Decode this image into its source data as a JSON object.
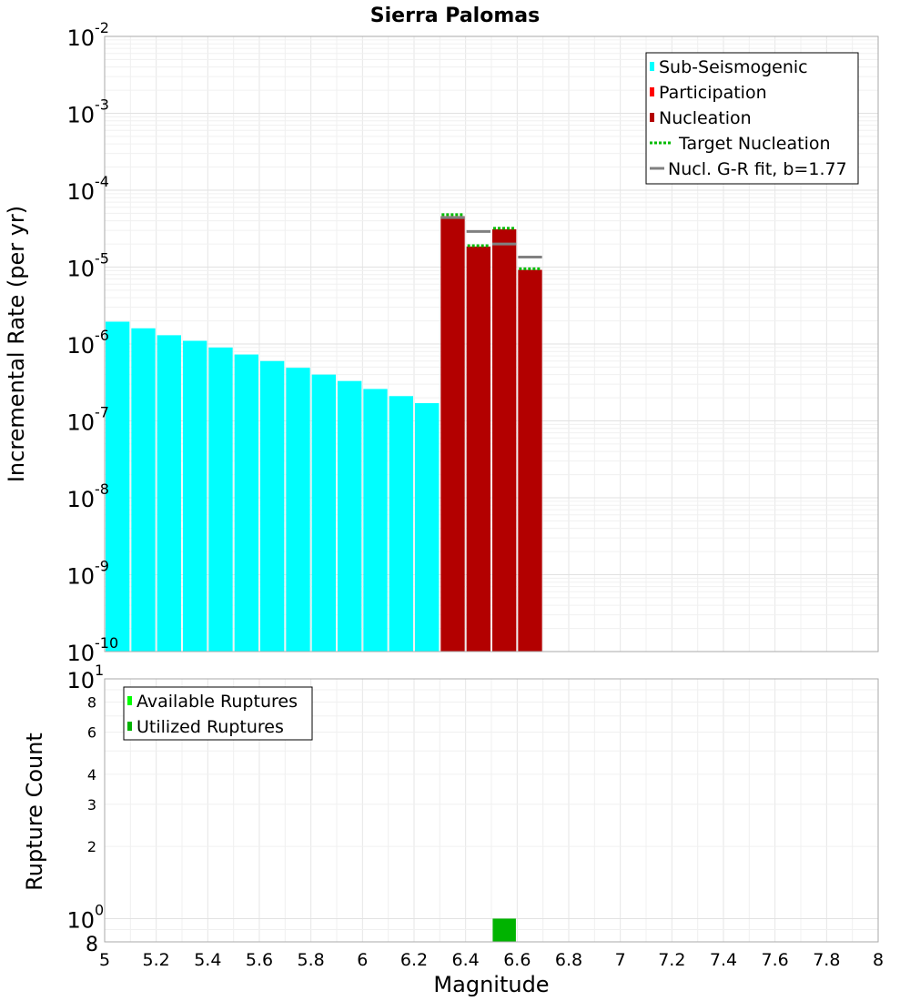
{
  "chart_data": [
    {
      "type": "bar",
      "title": "Sierra Palomas",
      "ylabel": "Incremental Rate (per yr)",
      "y_scale": "log",
      "ylim": [
        1e-10,
        0.01
      ],
      "xlim": [
        5,
        8
      ],
      "bar_width": 0.1,
      "y_ticks": [
        {
          "base": "10",
          "exp": "-10"
        },
        {
          "base": "10",
          "exp": "-9"
        },
        {
          "base": "10",
          "exp": "-8"
        },
        {
          "base": "10",
          "exp": "-7"
        },
        {
          "base": "10",
          "exp": "-6"
        },
        {
          "base": "10",
          "exp": "-5"
        },
        {
          "base": "10",
          "exp": "-4"
        },
        {
          "base": "10",
          "exp": "-3"
        },
        {
          "base": "10",
          "exp": "-2"
        }
      ],
      "legend": {
        "placement": "top-right",
        "entries": [
          {
            "label": "Sub-Seismogenic",
            "color": "#00ffff",
            "style": "box"
          },
          {
            "label": "Participation",
            "color": "#ff0000",
            "style": "box"
          },
          {
            "label": "Nucleation",
            "color": "#b30000",
            "style": "box"
          },
          {
            "label": "Target Nucleation",
            "color": "#00bb00",
            "style": "dotted"
          },
          {
            "label": "Nucl. G-R fit, b=1.77",
            "color": "#808080",
            "style": "line"
          }
        ]
      },
      "series": [
        {
          "name": "Sub-Seismogenic",
          "color": "#00ffff",
          "x": [
            5.05,
            5.15,
            5.25,
            5.35,
            5.45,
            5.55,
            5.65,
            5.75,
            5.85,
            5.95,
            6.05,
            6.15,
            6.25
          ],
          "values": [
            1.95e-06,
            1.6e-06,
            1.3e-06,
            1.1e-06,
            9e-07,
            7.3e-07,
            6e-07,
            4.9e-07,
            4e-07,
            3.3e-07,
            2.6e-07,
            2.1e-07,
            1.7e-07
          ]
        },
        {
          "name": "Nucleation",
          "color": "#b30000",
          "x": [
            6.35,
            6.45,
            6.55,
            6.65
          ],
          "values": [
            4.6e-05,
            1.85e-05,
            3.1e-05,
            9.2e-06
          ]
        },
        {
          "name": "Target Nucleation",
          "color": "#00bb00",
          "x": [
            6.35,
            6.45,
            6.55,
            6.65
          ],
          "values": [
            4.8e-05,
            1.9e-05,
            3.2e-05,
            9.5e-06
          ]
        },
        {
          "name": "Nucl. G-R fit, b=1.77",
          "color": "#808080",
          "x": [
            6.35,
            6.45,
            6.55,
            6.65
          ],
          "values": [
            4.4e-05,
            2.9e-05,
            2e-05,
            1.35e-05
          ]
        }
      ]
    },
    {
      "type": "bar",
      "xlabel": "Magnitude",
      "ylabel": "Rupture Count",
      "y_scale": "log",
      "ylim": [
        0.8,
        10
      ],
      "xlim": [
        5,
        8
      ],
      "x_ticks": [
        "5",
        "5.2",
        "5.4",
        "5.6",
        "5.8",
        "6",
        "6.2",
        "6.4",
        "6.6",
        "6.8",
        "7",
        "7.2",
        "7.4",
        "7.6",
        "7.8",
        "8"
      ],
      "y_major_ticks": [
        {
          "value": 1,
          "base": "10",
          "exp": "0"
        },
        {
          "value": 10,
          "base": "10",
          "exp": "1"
        }
      ],
      "y_minor_ticks": [
        {
          "value": 0.8,
          "label": "8"
        },
        {
          "value": 2,
          "label": "2"
        },
        {
          "value": 3,
          "label": "3"
        },
        {
          "value": 4,
          "label": "4"
        },
        {
          "value": 6,
          "label": "6"
        },
        {
          "value": 8,
          "label": "8"
        }
      ],
      "legend": {
        "placement": "top-left",
        "entries": [
          {
            "label": "Available Ruptures",
            "color": "#00ff00",
            "style": "box"
          },
          {
            "label": "Utilized Ruptures",
            "color": "#00b300",
            "style": "box"
          }
        ]
      },
      "series": [
        {
          "name": "Utilized Ruptures",
          "color": "#00b300",
          "x": [
            6.55
          ],
          "values": [
            1
          ]
        }
      ]
    }
  ]
}
